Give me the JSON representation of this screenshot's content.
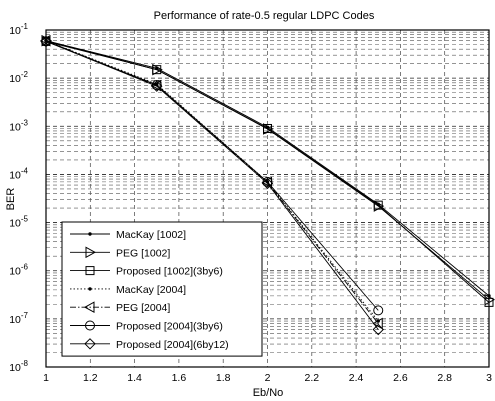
{
  "chart_data": {
    "type": "line",
    "title": "Performance of rate-0.5 regular LDPC Codes",
    "xlabel": "Eb/No",
    "ylabel": "BER",
    "xlim": [
      1,
      3
    ],
    "ylim": [
      1e-08,
      0.1
    ],
    "yscale": "log",
    "grid": true,
    "legend_position": "bottom-left",
    "x_ticks": [
      "1",
      "1.2",
      "1.4",
      "1.6",
      "1.8",
      "2",
      "2.2",
      "2.4",
      "2.6",
      "2.8",
      "3"
    ],
    "y_ticks": [
      {
        "base": "10",
        "exp": "-8"
      },
      {
        "base": "10",
        "exp": "-7"
      },
      {
        "base": "10",
        "exp": "-6"
      },
      {
        "base": "10",
        "exp": "-5"
      },
      {
        "base": "10",
        "exp": "-4"
      },
      {
        "base": "10",
        "exp": "-3"
      },
      {
        "base": "10",
        "exp": "-2"
      },
      {
        "base": "10",
        "exp": "-1"
      }
    ],
    "series": [
      {
        "name": "MacKay [1002]",
        "marker": "dot",
        "dash": "solid",
        "x": [
          1,
          1.5,
          2,
          2.5,
          3
        ],
        "y": [
          0.06,
          0.016,
          0.00095,
          2.4e-05,
          3e-07
        ]
      },
      {
        "name": "PEG [1002]",
        "marker": "triangle-right",
        "dash": "solid",
        "x": [
          1,
          1.5,
          2,
          2.5,
          3
        ],
        "y": [
          0.06,
          0.015,
          0.00088,
          2.2e-05,
          2.5e-07
        ]
      },
      {
        "name": "Proposed [1002](3by6)",
        "marker": "square",
        "dash": "solid",
        "x": [
          1,
          1.5,
          2,
          2.5,
          3
        ],
        "y": [
          0.058,
          0.015,
          0.0009,
          2.3e-05,
          2.2e-07
        ]
      },
      {
        "name": "MacKay [2004]",
        "marker": "dot",
        "dash": "dotted",
        "x": [
          1,
          1.5,
          2,
          2.5,
          3
        ],
        "y": [
          0.06,
          0.0075,
          7e-05,
          9e-08,
          null
        ]
      },
      {
        "name": "PEG [2004]",
        "marker": "triangle-left",
        "dash": "dashdot",
        "x": [
          1,
          1.5,
          2,
          2.5,
          3
        ],
        "y": [
          0.06,
          0.007,
          6.8e-05,
          8e-08,
          null
        ]
      },
      {
        "name": "Proposed [2004](3by6)",
        "marker": "circle",
        "dash": "solid",
        "x": [
          1,
          1.5,
          2,
          2.5,
          3
        ],
        "y": [
          0.058,
          0.0072,
          7e-05,
          1.5e-07,
          null
        ]
      },
      {
        "name": "Proposed [2004](6by12)",
        "marker": "diamond",
        "dash": "solid",
        "x": [
          1,
          1.5,
          2,
          2.5,
          3
        ],
        "y": [
          0.058,
          0.0068,
          6.5e-05,
          6e-08,
          null
        ]
      }
    ]
  }
}
